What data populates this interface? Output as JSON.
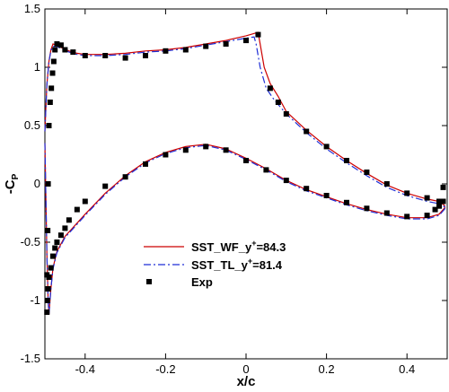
{
  "chart_data": {
    "type": "line",
    "xlabel": "x/c",
    "ylabel": "-C",
    "ylabel_sub": "P",
    "xlim": [
      -0.5,
      0.5
    ],
    "ylim": [
      -1.5,
      1.5
    ],
    "x_ticks": [
      -0.4,
      -0.2,
      0,
      0.2,
      0.4
    ],
    "x_tick_labels": [
      "-0.4",
      "-0.2",
      "0",
      "0.2",
      "0.4"
    ],
    "y_ticks": [
      -1.5,
      -1,
      -0.5,
      0,
      0.5,
      1,
      1.5
    ],
    "y_tick_labels": [
      "-1.5",
      "-1",
      "-0.5",
      "0",
      "0.5",
      "1",
      "1.5"
    ],
    "grid": false,
    "legend_position": "lower-left",
    "series": [
      {
        "name_main": "SST_WF_y",
        "name_sup": "+",
        "name_tail": "=84.3",
        "color": "#cc0000",
        "style": "solid",
        "upper": [
          [
            -0.5,
            0.45
          ],
          [
            -0.495,
            0.85
          ],
          [
            -0.49,
            1.05
          ],
          [
            -0.485,
            1.15
          ],
          [
            -0.48,
            1.2
          ],
          [
            -0.47,
            1.19
          ],
          [
            -0.46,
            1.17
          ],
          [
            -0.44,
            1.14
          ],
          [
            -0.42,
            1.12
          ],
          [
            -0.4,
            1.11
          ],
          [
            -0.35,
            1.11
          ],
          [
            -0.3,
            1.12
          ],
          [
            -0.25,
            1.14
          ],
          [
            -0.2,
            1.15
          ],
          [
            -0.15,
            1.17
          ],
          [
            -0.1,
            1.2
          ],
          [
            -0.05,
            1.23
          ],
          [
            0,
            1.27
          ],
          [
            0.02,
            1.29
          ],
          [
            0.03,
            1.3
          ],
          [
            0.035,
            1.2
          ],
          [
            0.045,
            1.0
          ],
          [
            0.06,
            0.86
          ],
          [
            0.08,
            0.75
          ],
          [
            0.1,
            0.62
          ],
          [
            0.15,
            0.46
          ],
          [
            0.2,
            0.32
          ],
          [
            0.25,
            0.2
          ],
          [
            0.3,
            0.09
          ],
          [
            0.35,
            -0.01
          ],
          [
            0.4,
            -0.08
          ],
          [
            0.45,
            -0.13
          ],
          [
            0.48,
            -0.15
          ],
          [
            0.495,
            -0.19
          ]
        ],
        "lower": [
          [
            -0.5,
            0.35
          ],
          [
            -0.497,
            -0.2
          ],
          [
            -0.495,
            -0.6
          ],
          [
            -0.492,
            -1.0
          ],
          [
            -0.49,
            -1.12
          ],
          [
            -0.485,
            -0.9
          ],
          [
            -0.48,
            -0.72
          ],
          [
            -0.47,
            -0.58
          ],
          [
            -0.45,
            -0.45
          ],
          [
            -0.4,
            -0.26
          ],
          [
            -0.35,
            -0.08
          ],
          [
            -0.3,
            0.07
          ],
          [
            -0.25,
            0.19
          ],
          [
            -0.2,
            0.27
          ],
          [
            -0.15,
            0.32
          ],
          [
            -0.1,
            0.34
          ],
          [
            -0.05,
            0.3
          ],
          [
            0,
            0.22
          ],
          [
            0.05,
            0.13
          ],
          [
            0.1,
            0.03
          ],
          [
            0.15,
            -0.05
          ],
          [
            0.2,
            -0.11
          ],
          [
            0.25,
            -0.17
          ],
          [
            0.3,
            -0.22
          ],
          [
            0.35,
            -0.26
          ],
          [
            0.4,
            -0.29
          ],
          [
            0.45,
            -0.29
          ],
          [
            0.48,
            -0.26
          ],
          [
            0.495,
            -0.2
          ]
        ]
      },
      {
        "name_main": "SST_TL_y",
        "name_sup": "+",
        "name_tail": "=81.4",
        "color": "#1f2fd6",
        "style": "dashdot",
        "upper": [
          [
            -0.5,
            0.45
          ],
          [
            -0.495,
            0.85
          ],
          [
            -0.49,
            1.05
          ],
          [
            -0.485,
            1.14
          ],
          [
            -0.48,
            1.18
          ],
          [
            -0.47,
            1.18
          ],
          [
            -0.46,
            1.16
          ],
          [
            -0.44,
            1.13
          ],
          [
            -0.42,
            1.11
          ],
          [
            -0.4,
            1.1
          ],
          [
            -0.35,
            1.1
          ],
          [
            -0.3,
            1.11
          ],
          [
            -0.25,
            1.13
          ],
          [
            -0.2,
            1.14
          ],
          [
            -0.15,
            1.16
          ],
          [
            -0.1,
            1.19
          ],
          [
            -0.05,
            1.22
          ],
          [
            0,
            1.25
          ],
          [
            0.02,
            1.26
          ],
          [
            0.025,
            1.2
          ],
          [
            0.035,
            1.0
          ],
          [
            0.05,
            0.82
          ],
          [
            0.07,
            0.72
          ],
          [
            0.1,
            0.6
          ],
          [
            0.15,
            0.44
          ],
          [
            0.2,
            0.3
          ],
          [
            0.25,
            0.18
          ],
          [
            0.3,
            0.07
          ],
          [
            0.35,
            -0.03
          ],
          [
            0.4,
            -0.1
          ],
          [
            0.45,
            -0.15
          ],
          [
            0.48,
            -0.17
          ],
          [
            0.495,
            -0.2
          ]
        ],
        "lower": [
          [
            -0.5,
            0.35
          ],
          [
            -0.497,
            -0.2
          ],
          [
            -0.495,
            -0.6
          ],
          [
            -0.492,
            -1.0
          ],
          [
            -0.49,
            -1.12
          ],
          [
            -0.485,
            -0.9
          ],
          [
            -0.48,
            -0.73
          ],
          [
            -0.47,
            -0.59
          ],
          [
            -0.45,
            -0.46
          ],
          [
            -0.4,
            -0.27
          ],
          [
            -0.35,
            -0.09
          ],
          [
            -0.3,
            0.06
          ],
          [
            -0.25,
            0.18
          ],
          [
            -0.2,
            0.26
          ],
          [
            -0.15,
            0.31
          ],
          [
            -0.1,
            0.33
          ],
          [
            -0.05,
            0.29
          ],
          [
            0,
            0.21
          ],
          [
            0.05,
            0.12
          ],
          [
            0.1,
            0.02
          ],
          [
            0.15,
            -0.06
          ],
          [
            0.2,
            -0.12
          ],
          [
            0.25,
            -0.18
          ],
          [
            0.3,
            -0.23
          ],
          [
            0.35,
            -0.27
          ],
          [
            0.4,
            -0.3
          ],
          [
            0.45,
            -0.3
          ],
          [
            0.48,
            -0.27
          ],
          [
            0.495,
            -0.21
          ]
        ]
      }
    ],
    "experiment": {
      "name": "Exp",
      "color": "#000000",
      "marker": "square",
      "points": [
        [
          -0.495,
          -1.1
        ],
        [
          -0.494,
          -1.0
        ],
        [
          -0.492,
          -0.9
        ],
        [
          -0.49,
          -0.8
        ],
        [
          -0.485,
          -0.72
        ],
        [
          -0.48,
          -0.62
        ],
        [
          -0.475,
          -0.55
        ],
        [
          -0.47,
          -0.5
        ],
        [
          -0.46,
          -0.44
        ],
        [
          -0.45,
          -0.38
        ],
        [
          -0.44,
          -0.31
        ],
        [
          -0.42,
          -0.22
        ],
        [
          -0.4,
          -0.15
        ],
        [
          -0.35,
          -0.02
        ],
        [
          -0.3,
          0.06
        ],
        [
          -0.25,
          0.17
        ],
        [
          -0.2,
          0.25
        ],
        [
          -0.15,
          0.29
        ],
        [
          -0.1,
          0.32
        ],
        [
          -0.05,
          0.29
        ],
        [
          0,
          0.2
        ],
        [
          0.05,
          0.12
        ],
        [
          0.1,
          0.03
        ],
        [
          0.15,
          -0.04
        ],
        [
          0.2,
          -0.1
        ],
        [
          0.25,
          -0.16
        ],
        [
          0.3,
          -0.21
        ],
        [
          0.35,
          -0.25
        ],
        [
          0.4,
          -0.28
        ],
        [
          0.45,
          -0.27
        ],
        [
          0.47,
          -0.22
        ],
        [
          0.48,
          -0.19
        ],
        [
          0.49,
          -0.15
        ],
        [
          0.49,
          -0.03
        ],
        [
          -0.495,
          -0.78
        ],
        [
          -0.493,
          -0.4
        ],
        [
          -0.492,
          0.0
        ],
        [
          -0.49,
          0.5
        ],
        [
          -0.487,
          0.7
        ],
        [
          -0.484,
          0.82
        ],
        [
          -0.481,
          0.95
        ],
        [
          -0.478,
          1.05
        ],
        [
          -0.475,
          1.15
        ],
        [
          -0.47,
          1.2
        ],
        [
          -0.46,
          1.19
        ],
        [
          -0.45,
          1.15
        ],
        [
          -0.43,
          1.13
        ],
        [
          -0.4,
          1.1
        ],
        [
          -0.35,
          1.1
        ],
        [
          -0.3,
          1.08
        ],
        [
          -0.25,
          1.1
        ],
        [
          -0.2,
          1.14
        ],
        [
          -0.15,
          1.15
        ],
        [
          -0.1,
          1.18
        ],
        [
          -0.05,
          1.2
        ],
        [
          0,
          1.23
        ],
        [
          0.03,
          1.28
        ],
        [
          0.06,
          0.82
        ],
        [
          0.08,
          0.7
        ],
        [
          0.1,
          0.6
        ],
        [
          0.15,
          0.45
        ],
        [
          0.2,
          0.32
        ],
        [
          0.25,
          0.2
        ],
        [
          0.3,
          0.1
        ],
        [
          0.35,
          0.0
        ],
        [
          0.4,
          -0.08
        ],
        [
          0.45,
          -0.12
        ],
        [
          0.48,
          -0.15
        ]
      ]
    }
  }
}
